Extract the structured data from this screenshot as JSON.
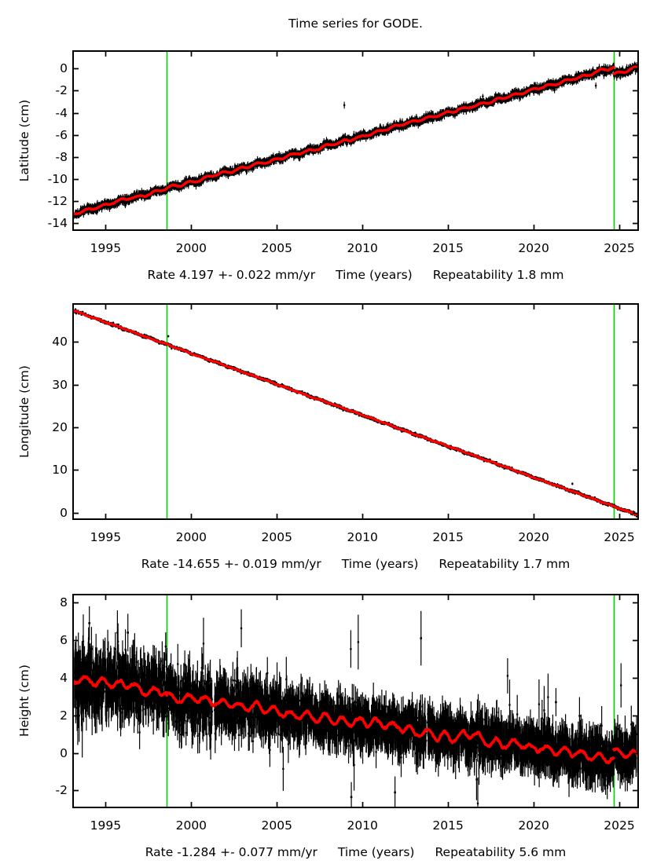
{
  "title": "Time series for GODE.",
  "colors": {
    "background": "#ffffff",
    "axis": "#000000",
    "data": "#000000",
    "trend": "#ff0000",
    "event": "#00cc00"
  },
  "chart_data": [
    {
      "type": "scatter",
      "ylabel": "Latitude (cm)",
      "xlabel": "Time (years)",
      "rate_label": "Rate 4.197 +- 0.022 mm/yr",
      "repeatability_label": "Repeatability 1.8 mm",
      "rate_mm_per_yr": 4.197,
      "rate_sigma_mm_per_yr": 0.022,
      "repeatability_mm": 1.8,
      "xlim": [
        1993.1,
        2026.1
      ],
      "ylim": [
        -14.62,
        1.58
      ],
      "xticks": [
        1995,
        2000,
        2005,
        2010,
        2015,
        2020,
        2025
      ],
      "yticks": [
        -14,
        -12,
        -10,
        -8,
        -6,
        -4,
        -2,
        0
      ],
      "event_lines_x": [
        1998.57,
        2024.68
      ],
      "data_x_range": [
        1993.18,
        2026.02
      ],
      "seed": 11,
      "trend_segments": [
        {
          "x0": 1993.1,
          "y0": -13.15,
          "x1": 2024.68,
          "y1": 0.05
        },
        {
          "x0": 2024.68,
          "y0": -0.55,
          "x1": 2026.1,
          "y1": 0.12
        }
      ],
      "series": [
        {
          "name": "daily-position-estimates",
          "step": 0.01,
          "noise_sigma": 0.15,
          "error_bar": 0.25,
          "seasonal_amp": 0.1,
          "seasonal_phase": 0.62,
          "outlier_rate": 0.0008,
          "bar_width": 1.1,
          "gaps": [],
          "outliers": []
        },
        {
          "name": "filtered-trend-line",
          "line_width": 3.4,
          "step": 0.03,
          "seasonal_amp": 0.1,
          "wobble": 0.05,
          "jitter": 0.03
        }
      ]
    },
    {
      "type": "scatter",
      "ylabel": "Longitude (cm)",
      "xlabel": "Time (years)",
      "rate_label": "Rate -14.655 +- 0.019 mm/yr",
      "repeatability_label": "Repeatability 1.7 mm",
      "rate_mm_per_yr": -14.655,
      "rate_sigma_mm_per_yr": 0.019,
      "repeatability_mm": 1.7,
      "xlim": [
        1993.1,
        2026.1
      ],
      "ylim": [
        -1.5,
        48.85
      ],
      "xticks": [
        1995,
        2000,
        2005,
        2010,
        2015,
        2020,
        2025
      ],
      "yticks": [
        0,
        10,
        20,
        30,
        40
      ],
      "event_lines_x": [
        1998.57,
        2024.68
      ],
      "data_x_range": [
        1993.18,
        2026.02
      ],
      "seed": 22,
      "trend_segments": [
        {
          "x0": 1993.1,
          "y0": 47.35,
          "x1": 2026.1,
          "y1": -0.55
        }
      ],
      "series": [
        {
          "name": "daily-position-estimates",
          "step": 0.01,
          "noise_sigma": 0.15,
          "error_bar": 0.25,
          "seasonal_amp": 0.08,
          "seasonal_phase": 0.3,
          "outlier_rate": 0.0008,
          "bar_width": 1.1,
          "gaps": [],
          "outliers": []
        },
        {
          "name": "filtered-trend-line",
          "line_width": 3.4,
          "step": 0.03,
          "seasonal_amp": 0.07,
          "wobble": 0.04,
          "jitter": 0.03
        }
      ]
    },
    {
      "type": "scatter",
      "ylabel": "Height (cm)",
      "xlabel": "Time (years)",
      "rate_label": "Rate -1.284 +- 0.077 mm/yr",
      "repeatability_label": "Repeatability 5.6 mm",
      "rate_mm_per_yr": -1.284,
      "rate_sigma_mm_per_yr": 0.077,
      "repeatability_mm": 5.6,
      "xlim": [
        1993.1,
        2026.1
      ],
      "ylim": [
        -2.9,
        8.42
      ],
      "xticks": [
        1995,
        2000,
        2005,
        2010,
        2015,
        2020,
        2025
      ],
      "yticks": [
        -2,
        0,
        2,
        4,
        6,
        8
      ],
      "event_lines_x": [
        1998.57,
        2024.68
      ],
      "data_x_range": [
        1993.18,
        2026.02
      ],
      "seed": 33,
      "trend_segments": [
        {
          "x0": 1993.1,
          "y0": 3.95,
          "x1": 1998.57,
          "y1": 3.25
        },
        {
          "x0": 1998.57,
          "y0": 3.05,
          "x1": 2024.68,
          "y1": -0.35
        },
        {
          "x0": 2024.68,
          "y0": 0.05,
          "x1": 2026.1,
          "y1": -0.1
        }
      ],
      "series": [
        {
          "name": "daily-position-estimates",
          "step": 0.012,
          "noise_sigma": 0.88,
          "noise_sigma_end": 0.48,
          "noise_taper_until": 2012,
          "error_bar": 0.85,
          "early_error_boost": 0.5,
          "seasonal_amp": 0.2,
          "seasonal_phase": 0.55,
          "outlier_rate": 0.006,
          "bar_width": 1.2,
          "gaps": [
            [
              2001.22,
              2001.36
            ],
            [
              2013.72,
              2013.8
            ]
          ],
          "outliers": [
            {
              "x": 2013.42,
              "y": 6.1,
              "err": 1.45
            },
            {
              "x": 1994.05,
              "y": 6.9,
              "err": 0.9
            },
            {
              "x": 1996.3,
              "y": 6.4,
              "err": 1.0
            },
            {
              "x": 2009.35,
              "y": -2.35,
              "err": 0.8
            },
            {
              "x": 2011.9,
              "y": -2.1,
              "err": 0.85
            },
            {
              "x": 2021.3,
              "y": 2.7,
              "err": 0.75
            }
          ]
        },
        {
          "name": "filtered-trend-line",
          "line_width": 3.4,
          "step": 0.025,
          "seasonal_amp": 0.2,
          "wobble": 0.09,
          "jitter": 0.06
        }
      ]
    }
  ]
}
